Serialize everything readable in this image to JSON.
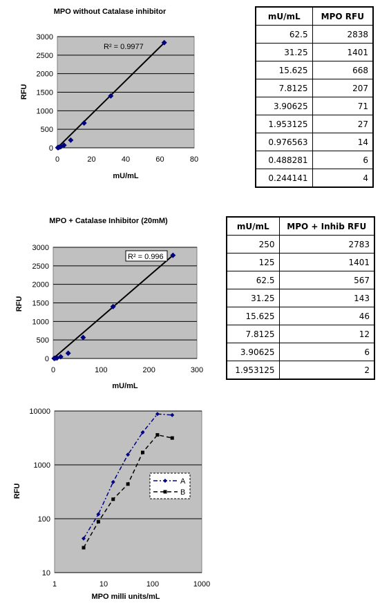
{
  "chart_data": [
    {
      "type": "scatter",
      "title": "MPO without Catalase inhibitor",
      "xlabel": "mU/mL",
      "ylabel": "RFU",
      "xlim": [
        0,
        80
      ],
      "ylim": [
        0,
        3000
      ],
      "xticks": [
        "0",
        "20",
        "40",
        "60",
        "80"
      ],
      "yticks": [
        "0",
        "500",
        "1000",
        "1500",
        "2000",
        "2500",
        "3000"
      ],
      "grid": "horizontal",
      "trendline": "linear",
      "annotation": "R² = 0.9977",
      "points": [
        [
          62.5,
          2838
        ],
        [
          31.25,
          1401
        ],
        [
          15.625,
          668
        ],
        [
          7.8125,
          207
        ],
        [
          3.90625,
          71
        ],
        [
          1.953125,
          27
        ],
        [
          0.976563,
          14
        ],
        [
          0.488281,
          6
        ],
        [
          0.244141,
          4
        ]
      ]
    },
    {
      "type": "scatter",
      "title": "MPO + Catalase Inhibitor (20mM)",
      "xlabel": "mU/mL",
      "ylabel": "RFU",
      "xlim": [
        0,
        300
      ],
      "ylim": [
        0,
        3000
      ],
      "xticks": [
        "0",
        "100",
        "200",
        "300"
      ],
      "yticks": [
        "0",
        "500",
        "1000",
        "1500",
        "2000",
        "2500",
        "3000"
      ],
      "grid": "horizontal",
      "trendline": "linear",
      "annotation": "R² = 0.996",
      "points": [
        [
          250,
          2783
        ],
        [
          125,
          1401
        ],
        [
          62.5,
          567
        ],
        [
          31.25,
          143
        ],
        [
          15.625,
          46
        ],
        [
          7.8125,
          12
        ],
        [
          3.90625,
          6
        ],
        [
          1.953125,
          2
        ]
      ]
    },
    {
      "type": "line",
      "title": "",
      "xlabel": "MPO milli units/mL",
      "ylabel": "RFU",
      "xscale": "log",
      "yscale": "log",
      "xlim": [
        1,
        1000
      ],
      "ylim": [
        10,
        10000
      ],
      "xticks": [
        "1",
        "10",
        "100",
        "1000"
      ],
      "yticks": [
        "10",
        "100",
        "1000",
        "10000"
      ],
      "grid": "horizontal",
      "legend": "right",
      "series": [
        {
          "name": "A",
          "color": "#000080",
          "marker": "diamond",
          "dash": "dash-dot",
          "x": [
            3.90625,
            7.8125,
            15.625,
            31.25,
            62.5,
            125,
            250
          ],
          "y": [
            43,
            121,
            480,
            1550,
            4000,
            8800,
            8400
          ]
        },
        {
          "name": "B",
          "color": "#000000",
          "marker": "square",
          "dash": "dash",
          "x": [
            3.90625,
            7.8125,
            15.625,
            31.25,
            62.5,
            125,
            250
          ],
          "y": [
            29,
            88,
            230,
            440,
            1700,
            3600,
            3150
          ]
        }
      ]
    }
  ],
  "tables": [
    {
      "headers": [
        "mU/mL",
        "MPO RFU"
      ],
      "rows": [
        [
          "62.5",
          "2838"
        ],
        [
          "31.25",
          "1401"
        ],
        [
          "15.625",
          "668"
        ],
        [
          "7.8125",
          "207"
        ],
        [
          "3.90625",
          "71"
        ],
        [
          "1.953125",
          "27"
        ],
        [
          "0.976563",
          "14"
        ],
        [
          "0.488281",
          "6"
        ],
        [
          "0.244141",
          "4"
        ]
      ]
    },
    {
      "headers": [
        "mU/mL",
        "MPO + Inhib RFU"
      ],
      "rows": [
        [
          "250",
          "2783"
        ],
        [
          "125",
          "1401"
        ],
        [
          "62.5",
          "567"
        ],
        [
          "31.25",
          "143"
        ],
        [
          "15.625",
          "46"
        ],
        [
          "7.8125",
          "12"
        ],
        [
          "3.90625",
          "6"
        ],
        [
          "1.953125",
          "2"
        ]
      ]
    }
  ]
}
